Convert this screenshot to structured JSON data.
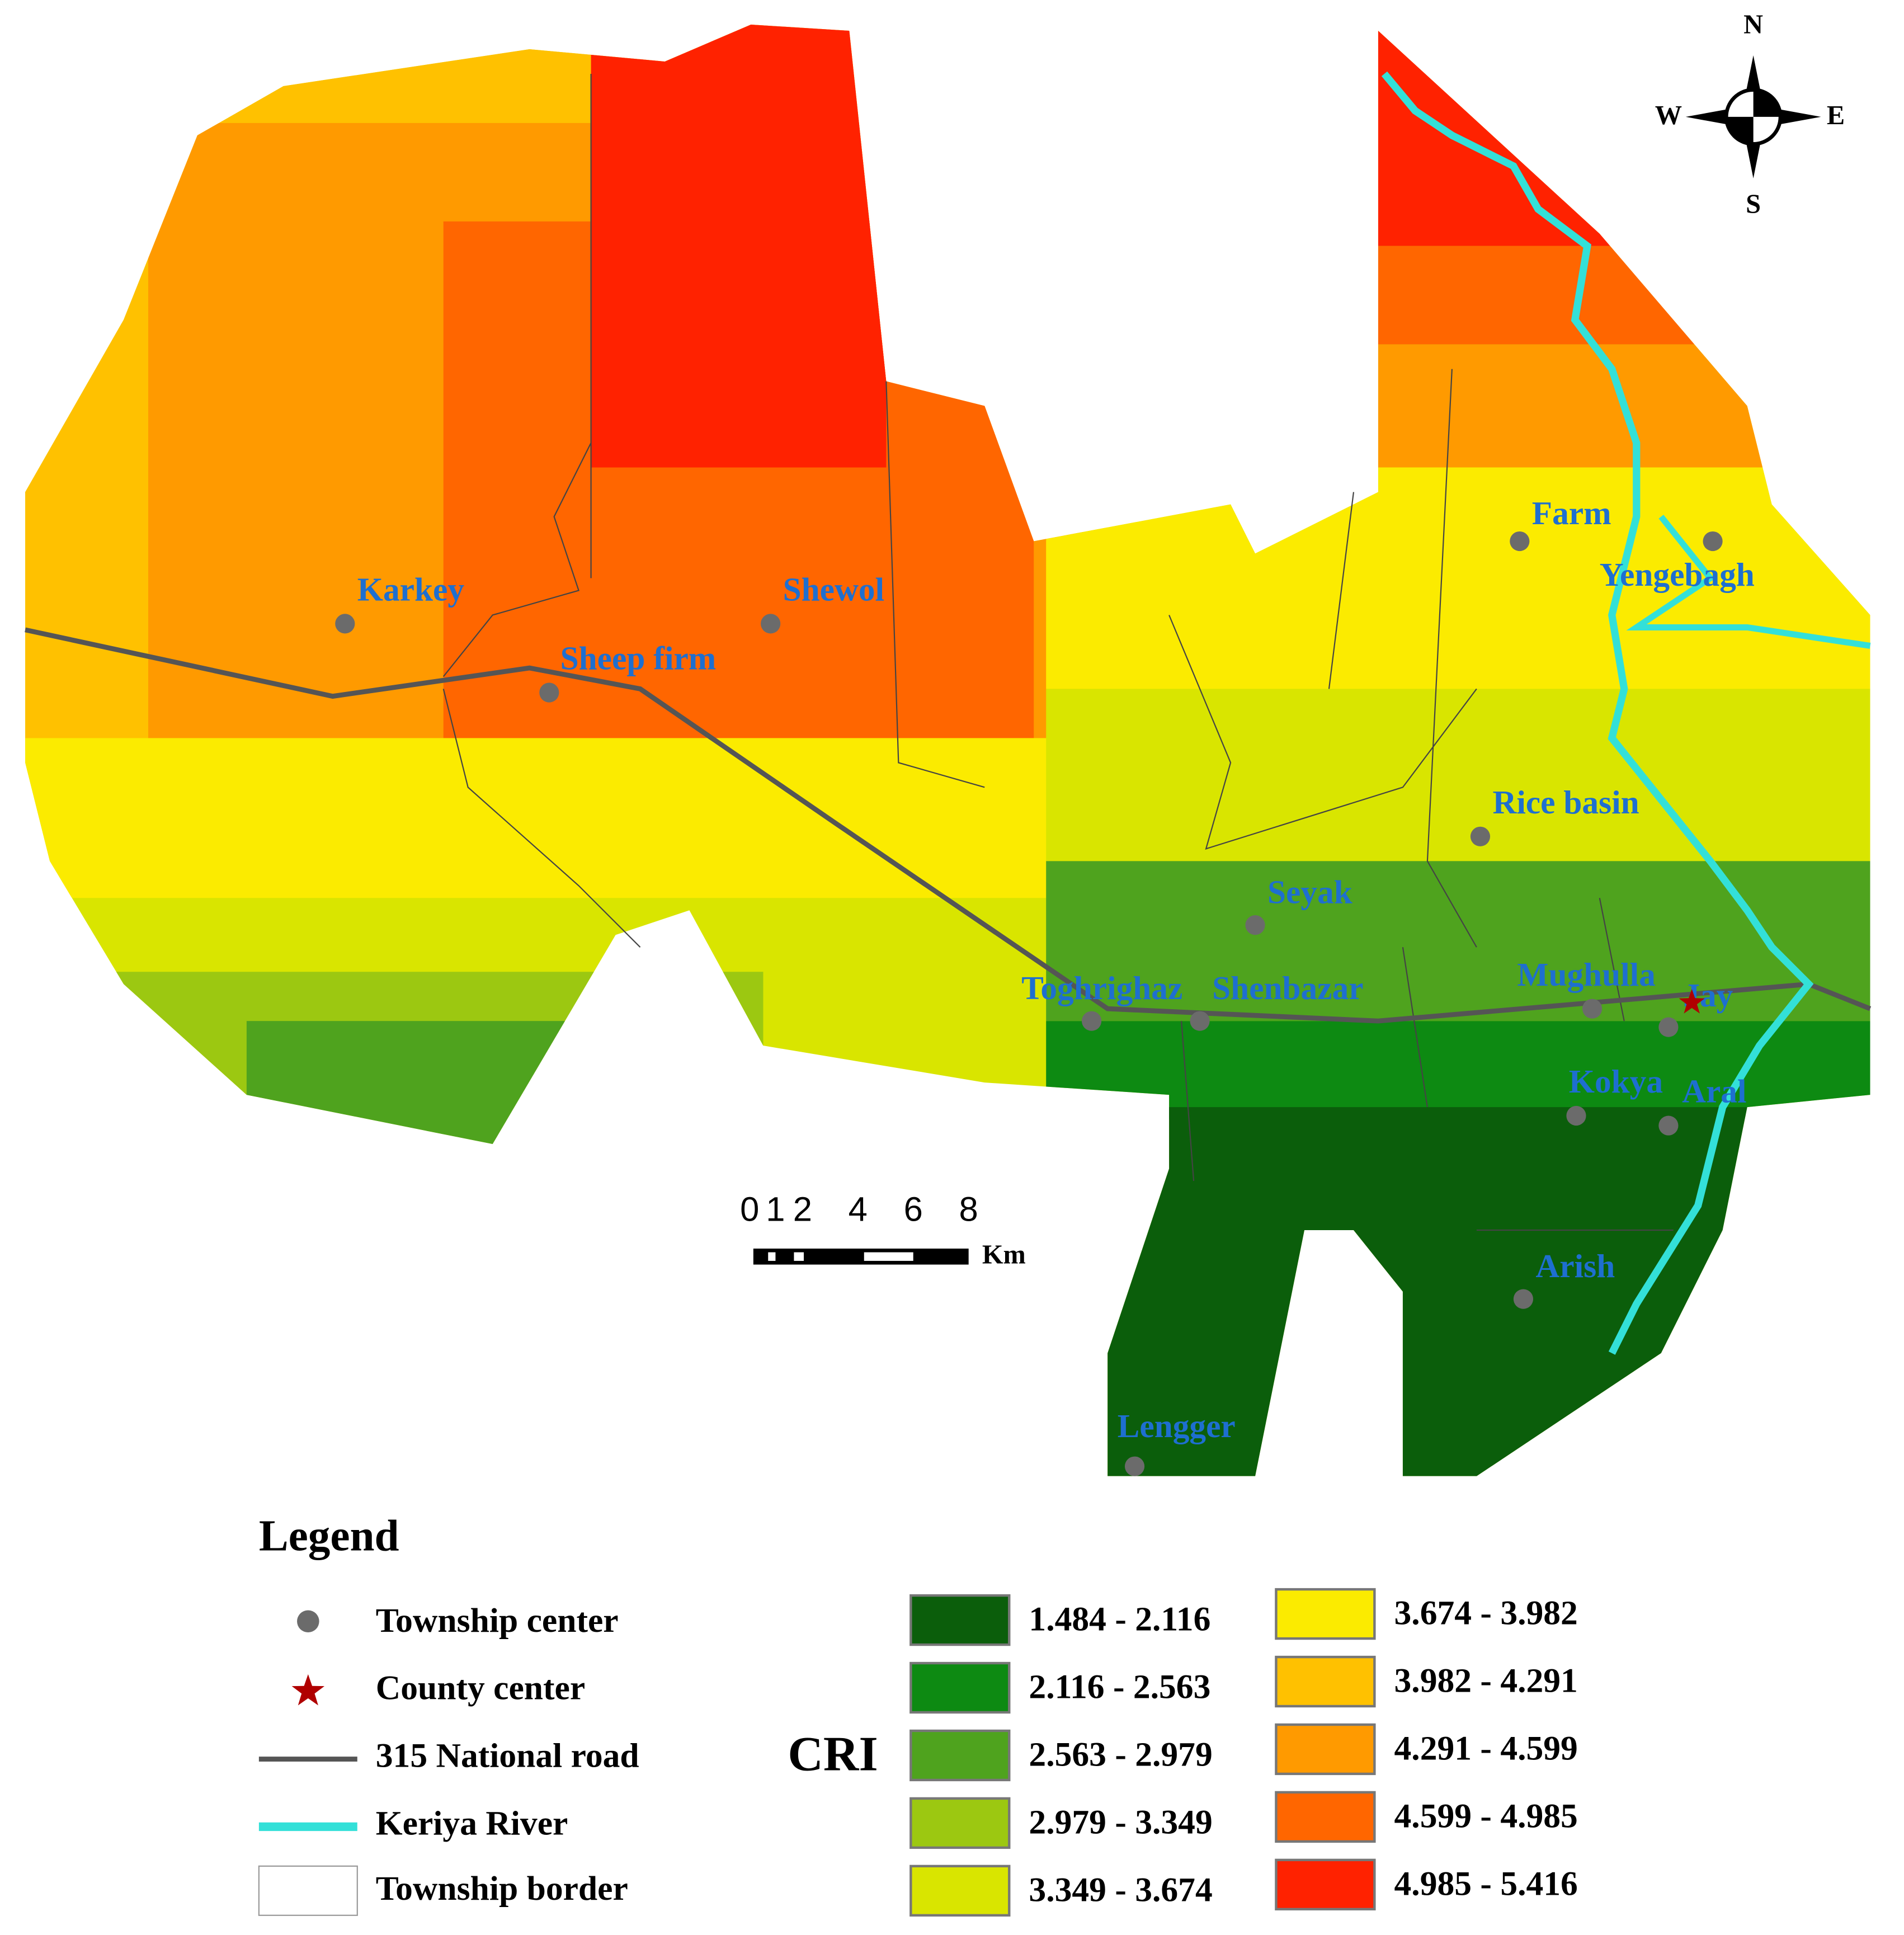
{
  "map": {
    "compass": {
      "north": "N",
      "south": "S",
      "east": "E",
      "west": "W"
    },
    "places": [
      {
        "label": "Karkey"
      },
      {
        "label": "Shewol"
      },
      {
        "label": "Sheep firm"
      },
      {
        "label": "Farm"
      },
      {
        "label": "Yengebagh"
      },
      {
        "label": "Rice basin"
      },
      {
        "label": "Seyak"
      },
      {
        "label": "Toghrighaz"
      },
      {
        "label": "Shenbazar"
      },
      {
        "label": "Mughulla"
      },
      {
        "label": "Jay"
      },
      {
        "label": "Kokya"
      },
      {
        "label": "Aral"
      },
      {
        "label": "Arish"
      },
      {
        "label": "Lengger"
      }
    ],
    "scale_bar": {
      "ticks": [
        0,
        1,
        2,
        4,
        6,
        8
      ],
      "unit": "Km"
    }
  },
  "legend": {
    "title": "Legend",
    "items": [
      {
        "label": "Township center",
        "color": "#6b6b6b"
      },
      {
        "label": "County center",
        "color": "#b00000"
      },
      {
        "label": "315 National road",
        "color": "#555555"
      },
      {
        "label": "Keriya River",
        "color": "#33e0d8"
      },
      {
        "label": "Township border",
        "color": "#444444"
      }
    ],
    "cri_label": "CRI",
    "classes": [
      {
        "label": "1.484 - 2.116",
        "color": "#0b5e0b"
      },
      {
        "label": "2.116 - 2.563",
        "color": "#0d8a12"
      },
      {
        "label": "2.563 - 2.979",
        "color": "#4fa31e"
      },
      {
        "label": "2.979 - 3.349",
        "color": "#9cc811"
      },
      {
        "label": "3.349 - 3.674",
        "color": "#d9e500"
      },
      {
        "label": "3.674 - 3.982",
        "color": "#fbeb00"
      },
      {
        "label": "3.982 - 4.291",
        "color": "#ffc100"
      },
      {
        "label": "4.291 - 4.599",
        "color": "#ff9a00"
      },
      {
        "label": "4.599 - 4.985",
        "color": "#ff6600"
      },
      {
        "label": "4.985 - 5.416",
        "color": "#ff2200"
      }
    ]
  }
}
